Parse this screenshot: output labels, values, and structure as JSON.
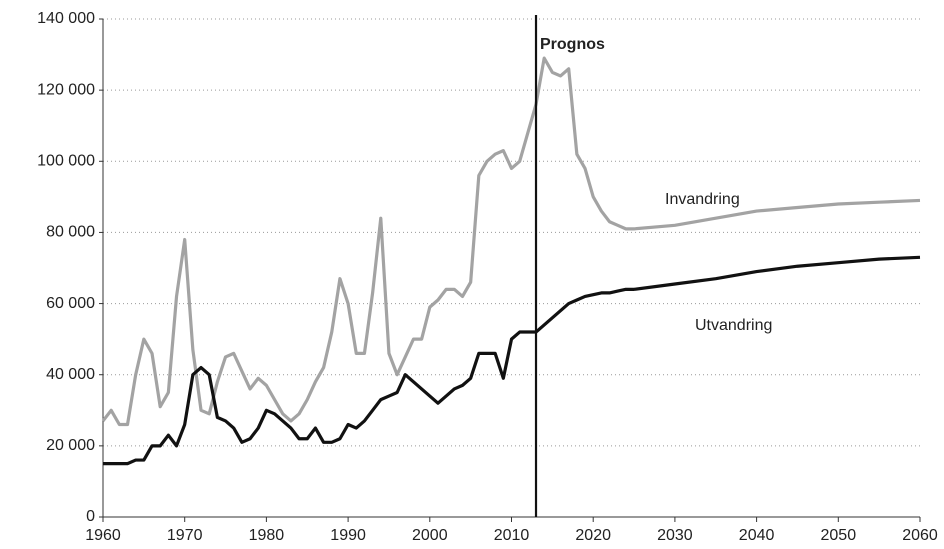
{
  "chart_data": {
    "type": "line",
    "x": [
      1960,
      1961,
      1962,
      1963,
      1964,
      1965,
      1966,
      1967,
      1968,
      1969,
      1970,
      1971,
      1972,
      1973,
      1974,
      1975,
      1976,
      1977,
      1978,
      1979,
      1980,
      1981,
      1982,
      1983,
      1984,
      1985,
      1986,
      1987,
      1988,
      1989,
      1990,
      1991,
      1992,
      1993,
      1994,
      1995,
      1996,
      1997,
      1998,
      1999,
      2000,
      2001,
      2002,
      2003,
      2004,
      2005,
      2006,
      2007,
      2008,
      2009,
      2010,
      2011,
      2012,
      2013,
      2014,
      2015,
      2016,
      2017,
      2018,
      2019,
      2020,
      2021,
      2022,
      2023,
      2024,
      2025,
      2030,
      2035,
      2040,
      2045,
      2050,
      2055,
      2060
    ],
    "series": [
      {
        "name": "Invandring",
        "color": "#a3a3a3",
        "values": [
          27000,
          30000,
          26000,
          26000,
          40000,
          50000,
          46000,
          31000,
          35000,
          62000,
          78000,
          47000,
          30000,
          29000,
          38000,
          45000,
          46000,
          41000,
          36000,
          39000,
          37000,
          33000,
          29000,
          27000,
          29000,
          33000,
          38000,
          42000,
          52000,
          67000,
          60000,
          46000,
          46000,
          63000,
          84000,
          46000,
          40000,
          45000,
          50000,
          50000,
          59000,
          61000,
          64000,
          64000,
          62000,
          66000,
          96000,
          100000,
          102000,
          103000,
          98000,
          100000,
          108000,
          116000,
          129000,
          125000,
          124000,
          126000,
          102000,
          98000,
          90000,
          86000,
          83000,
          82000,
          81000,
          81000,
          82000,
          84000,
          86000,
          87000,
          88000,
          88500,
          89000
        ]
      },
      {
        "name": "Utvandring",
        "color": "#111111",
        "values": [
          15000,
          15000,
          15000,
          15000,
          16000,
          16000,
          20000,
          20000,
          23000,
          20000,
          26000,
          40000,
          42000,
          40000,
          28000,
          27000,
          25000,
          21000,
          22000,
          25000,
          30000,
          29000,
          27000,
          25000,
          22000,
          22000,
          25000,
          21000,
          21000,
          22000,
          26000,
          25000,
          27000,
          30000,
          33000,
          34000,
          35000,
          40000,
          38000,
          36000,
          34000,
          32000,
          34000,
          36000,
          37000,
          39000,
          46000,
          46000,
          46000,
          39000,
          50000,
          52000,
          52000,
          52000,
          54000,
          56000,
          58000,
          60000,
          61000,
          62000,
          62500,
          63000,
          63000,
          63500,
          64000,
          64000,
          65500,
          67000,
          69000,
          70500,
          71500,
          72500,
          73000
        ]
      }
    ],
    "annotations": [
      {
        "text": "Prognos",
        "x": 2013
      }
    ],
    "xlim": [
      1960,
      2060
    ],
    "xticks": [
      1960,
      1970,
      1980,
      1990,
      2000,
      2010,
      2020,
      2030,
      2040,
      2050,
      2060
    ],
    "ylim": [
      0,
      140000
    ],
    "yticks": [
      0,
      {
        "value": 20000,
        "label": "20 000"
      },
      {
        "value": 40000,
        "label": "40 000"
      },
      {
        "value": 60000,
        "label": "60 000"
      },
      {
        "value": 80000,
        "label": "80 000"
      },
      {
        "value": 100000,
        "label": "100 000"
      },
      {
        "value": 120000,
        "label": "120 000"
      },
      {
        "value": 140000,
        "label": "140 000"
      }
    ],
    "grid": true
  }
}
